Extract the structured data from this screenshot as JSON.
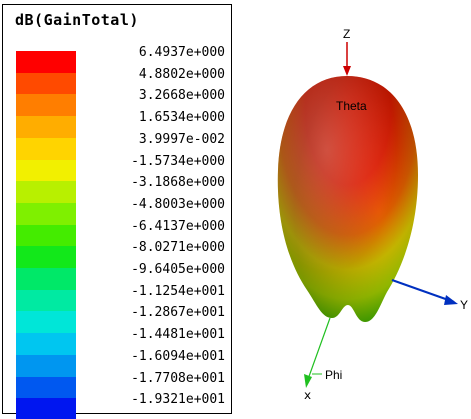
{
  "legend": {
    "title": "dB(GainTotal)",
    "levels": [
      {
        "label": "6.4937e+000",
        "color": "#ff0000"
      },
      {
        "label": "4.8802e+000",
        "color": "#ff4a00"
      },
      {
        "label": "3.2668e+000",
        "color": "#ff7e00"
      },
      {
        "label": "1.6534e+000",
        "color": "#ffad00"
      },
      {
        "label": "3.9997e-002",
        "color": "#ffd400"
      },
      {
        "label": "-1.5734e+000",
        "color": "#f2f000"
      },
      {
        "label": "-3.1868e+000",
        "color": "#b8f000"
      },
      {
        "label": "-4.8003e+000",
        "color": "#7ff000"
      },
      {
        "label": "-6.4137e+000",
        "color": "#44ec00"
      },
      {
        "label": "-8.0271e+000",
        "color": "#12e81a"
      },
      {
        "label": "-9.6405e+000",
        "color": "#00e868"
      },
      {
        "label": "-1.1254e+001",
        "color": "#00eaa2"
      },
      {
        "label": "-1.2867e+001",
        "color": "#00e6d8"
      },
      {
        "label": "-1.4481e+001",
        "color": "#00c6f0"
      },
      {
        "label": "-1.6094e+001",
        "color": "#0096f0"
      },
      {
        "label": "-1.7708e+001",
        "color": "#0058f0"
      },
      {
        "label": "-1.9321e+001",
        "color": "#0016f0"
      }
    ]
  },
  "plot": {
    "axis_z_label": "Z",
    "axis_y_label": "Y",
    "axis_phi_label": "Phi",
    "theta_label": "Theta",
    "colors": {
      "z_axis": "#cc0000",
      "y_axis": "#0030c0",
      "phi_axis": "#20c020"
    }
  }
}
